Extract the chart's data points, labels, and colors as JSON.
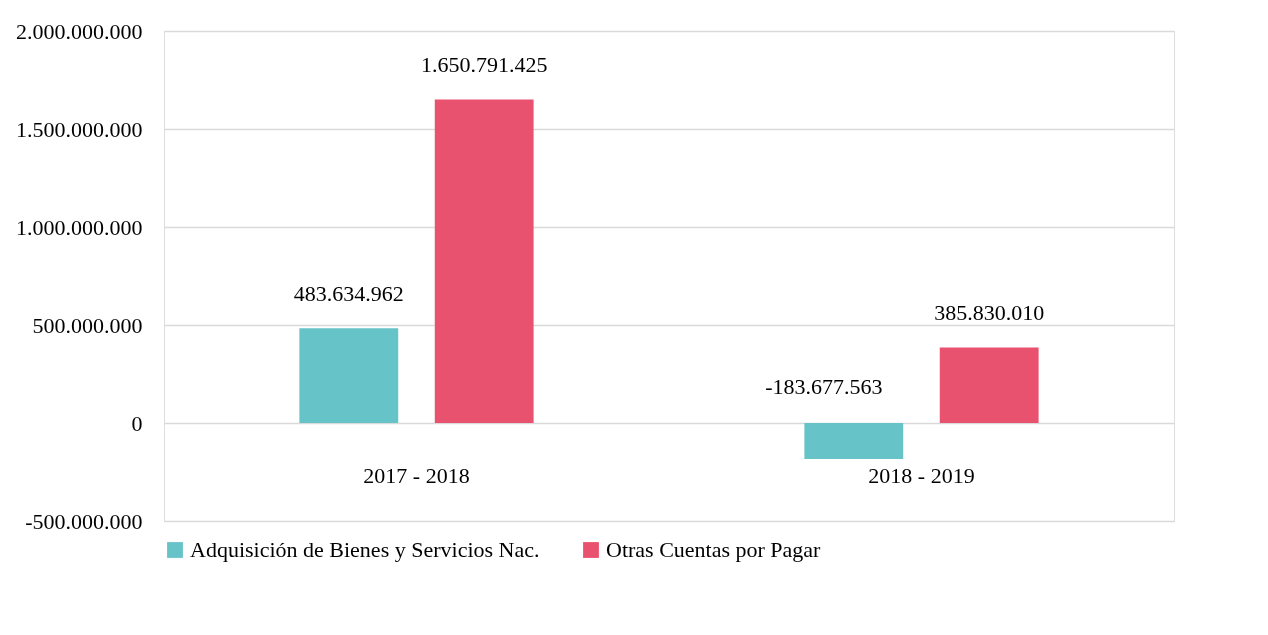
{
  "chart_data": {
    "type": "bar",
    "categories": [
      "2017 - 2018",
      "2018 - 2019"
    ],
    "series": [
      {
        "name": "Adquisición de Bienes y Servicios Nac.",
        "color": "#66c3c8",
        "values": [
          483634962,
          -183677563
        ],
        "value_labels": [
          "483.634.962",
          "-183.677.563"
        ]
      },
      {
        "name": "Otras Cuentas por Pagar",
        "color": "#e8526e",
        "values": [
          1650791425,
          385830010
        ],
        "value_labels": [
          "1.650.791.425",
          "385.830.010"
        ]
      }
    ],
    "ylim": [
      -500000000,
      2000000000
    ],
    "yticks": [
      {
        "value": -500000000,
        "label": "-500.000.000"
      },
      {
        "value": 0,
        "label": "0"
      },
      {
        "value": 500000000,
        "label": "500.000.000"
      },
      {
        "value": 1000000000,
        "label": "1.000.000.000"
      },
      {
        "value": 1500000000,
        "label": "1.500.000.000"
      },
      {
        "value": 2000000000,
        "label": "2.000.000.000"
      }
    ],
    "grid": "y",
    "legend": "bottom"
  }
}
